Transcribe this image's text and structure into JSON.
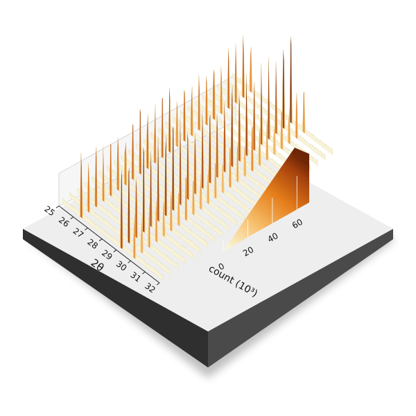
{
  "chart_data": {
    "type": "heatmap",
    "subtype": "3d-surface-waterfall",
    "title": "",
    "x_axis": {
      "label": "2θ",
      "ticks": [
        "25",
        "26",
        "27",
        "28",
        "29",
        "30",
        "31",
        "32"
      ],
      "range": [
        25,
        32
      ]
    },
    "colorbar": {
      "label": "count (10³)",
      "ticks": [
        "0",
        "20",
        "40",
        "60"
      ],
      "range": [
        0,
        70
      ],
      "colors": [
        "#fbf6d6",
        "#f7c06d",
        "#e47d1a",
        "#a4400c",
        "#5a1d06"
      ]
    },
    "peaks": [
      {
        "two_theta": 26.3,
        "count": 45
      },
      {
        "two_theta": 29.1,
        "count": 60
      },
      {
        "two_theta": 30.0,
        "count": 30
      }
    ],
    "background_count": 4,
    "series_count": 24
  },
  "colors": {
    "platform_top": "#eeeeee",
    "platform_side": "#3a3a3a",
    "platform_front": "#262626",
    "wall": "#f4f4f4"
  }
}
